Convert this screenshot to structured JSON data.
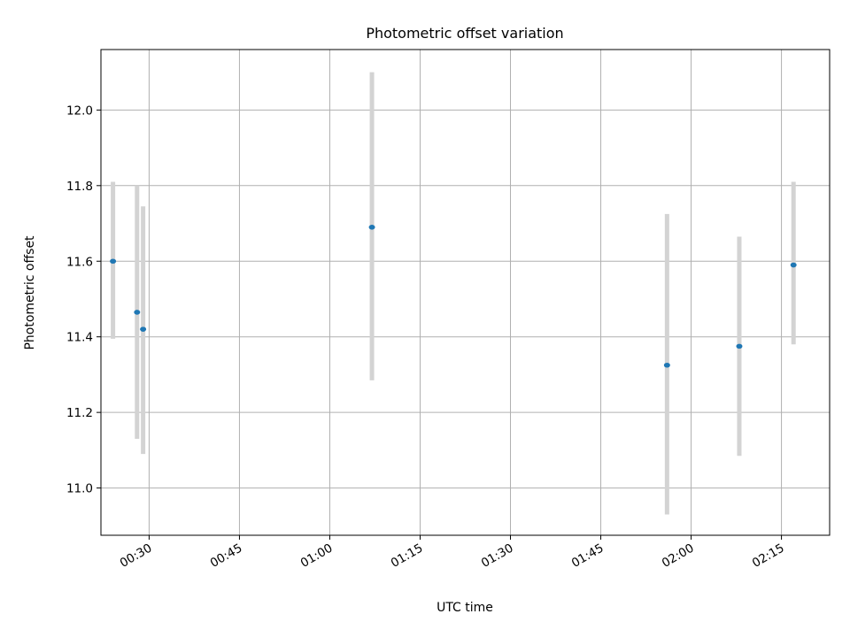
{
  "chart_data": {
    "type": "scatter",
    "title": "Photometric offset variation",
    "xlabel": "UTC time",
    "ylabel": "Photometric offset",
    "x_axis_type": "time",
    "xlim": [
      "00:22",
      "02:23"
    ],
    "ylim": [
      10.875,
      12.16
    ],
    "grid": true,
    "x_ticks": [
      "00:30",
      "00:45",
      "01:00",
      "01:15",
      "01:30",
      "01:45",
      "02:00",
      "02:15"
    ],
    "y_ticks": [
      11.0,
      11.2,
      11.4,
      11.6,
      11.8,
      12.0
    ],
    "colors": {
      "point": "#1f77b4",
      "errorbar": "#d3d3d3"
    },
    "points": [
      {
        "x": "00:24",
        "y": 11.6,
        "low": 11.395,
        "high": 11.81
      },
      {
        "x": "00:28",
        "y": 11.465,
        "low": 11.13,
        "high": 11.8
      },
      {
        "x": "00:29",
        "y": 11.42,
        "low": 11.09,
        "high": 11.745
      },
      {
        "x": "01:07",
        "y": 11.69,
        "low": 11.285,
        "high": 12.1
      },
      {
        "x": "01:56",
        "y": 11.325,
        "low": 10.93,
        "high": 11.725
      },
      {
        "x": "02:08",
        "y": 11.375,
        "low": 11.085,
        "high": 11.665
      },
      {
        "x": "02:17",
        "y": 11.59,
        "low": 11.38,
        "high": 11.81
      }
    ]
  }
}
